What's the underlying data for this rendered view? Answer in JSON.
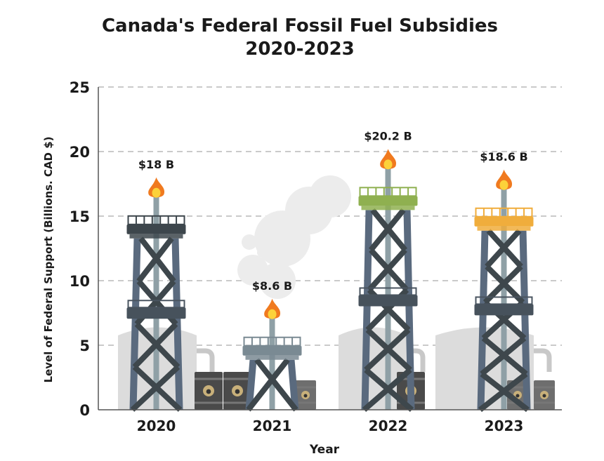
{
  "chart_data": {
    "type": "bar",
    "title": "Canada's Federal Fossil Fuel Subsidies",
    "subtitle": "2020-2023",
    "xlabel": "Year",
    "ylabel": "Level of Federal Support (Billions. CAD $)",
    "categories": [
      "2020",
      "2021",
      "2022",
      "2023"
    ],
    "values": [
      18,
      8.6,
      20.2,
      18.6
    ],
    "data_labels": [
      "$18 B",
      "$8.6 B",
      "$20.2 B",
      "$18.6 B"
    ],
    "ylim": [
      0,
      25
    ],
    "yticks": [
      "0",
      "5",
      "10",
      "15",
      "20",
      "25"
    ],
    "grid": "horizontal dashed",
    "legend": "none",
    "bar_style": "oil derrick with flame",
    "platform_colors": [
      "#3d464c",
      "#7a8a93",
      "#8fb050",
      "#f0ad3c"
    ]
  }
}
